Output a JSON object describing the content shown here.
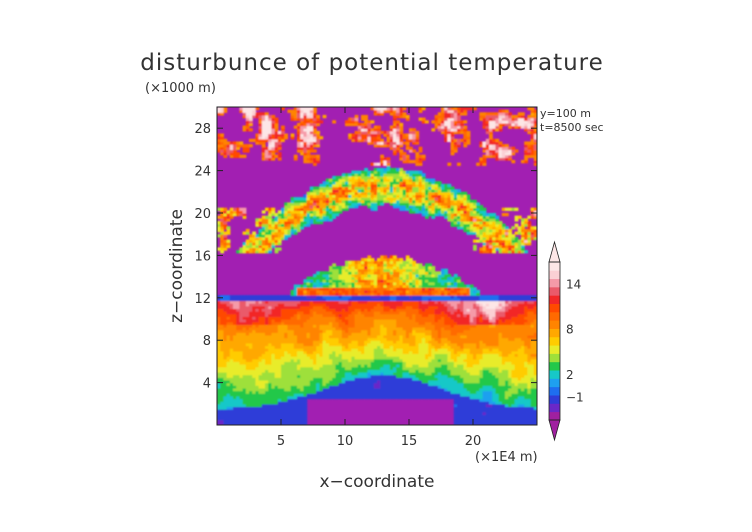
{
  "chart_data": {
    "type": "heatmap",
    "title": "disturbunce of potential temperature",
    "y_scale_note": "(×1000 m)",
    "x_scale_note": "(×1E4 m)",
    "xlabel": "x−coordinate",
    "ylabel": "z−coordinate",
    "annotations": [
      "y=100  m",
      "t=8500 sec"
    ],
    "xlim": [
      0,
      25
    ],
    "ylim": [
      0,
      30
    ],
    "x_ticks": [
      5,
      10,
      15,
      20
    ],
    "y_ticks": [
      4,
      8,
      12,
      16,
      20,
      24,
      28
    ],
    "colorbar": {
      "tick_labels": [
        "−1",
        "2",
        "8",
        "14"
      ],
      "tick_values": [
        -1,
        2,
        8,
        14
      ],
      "range": [
        -4,
        17
      ],
      "colors": [
        "#a020a0",
        "#6a28c8",
        "#2f3cd8",
        "#1e6ef0",
        "#1ea0f0",
        "#17c8c8",
        "#22c84a",
        "#9ee03a",
        "#e8ec2a",
        "#ffcc00",
        "#ffa800",
        "#ff8400",
        "#ff6a00",
        "#ff4a00",
        "#f22828",
        "#ea5a6a",
        "#f59aa8",
        "#fbd0d4",
        "#fde6e6"
      ]
    },
    "background_color": "#a21fb2",
    "grid": false,
    "legend": "colorbar-right"
  }
}
